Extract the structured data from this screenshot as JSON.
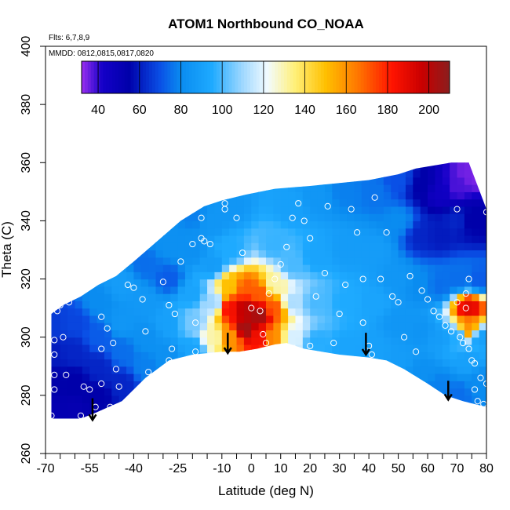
{
  "chart_data": {
    "type": "heatmap",
    "title": "ATOM1 Northbound CO_NOAA",
    "xlabel": "Latitude (deg N)",
    "ylabel": "Theta (C)",
    "xlim": [
      -70,
      80
    ],
    "ylim": [
      260,
      400
    ],
    "x_ticks": [
      -70,
      -55,
      -40,
      -25,
      -10,
      0,
      10,
      20,
      30,
      40,
      50,
      60,
      70,
      80
    ],
    "x_tick_labels": [
      "-70",
      "-55",
      "-40",
      "-25",
      "-10",
      "0",
      "10",
      "20",
      "30",
      "40",
      "50",
      "60",
      "70",
      "80"
    ],
    "x_minor_ticks": [
      -65,
      -60,
      -50,
      -45,
      -35,
      -30,
      -20,
      -15,
      -5,
      5,
      15,
      25,
      35,
      45,
      55,
      65,
      75
    ],
    "y_ticks": [
      260,
      280,
      300,
      320,
      340,
      360,
      380,
      400
    ],
    "y_tick_labels": [
      "260",
      "280",
      "300",
      "320",
      "340",
      "360",
      "380",
      "400"
    ],
    "notes": {
      "flights": "Flts: 6,7,8,9",
      "dates": "MMDD: 0812,0815,0817,0820"
    },
    "colorbar": {
      "range": [
        32,
        210
      ],
      "tick_values": [
        40,
        60,
        80,
        100,
        120,
        140,
        160,
        180,
        200
      ],
      "tick_labels": [
        "40",
        "60",
        "80",
        "100",
        "120",
        "140",
        "160",
        "180",
        "200"
      ],
      "stops": [
        {
          "value": 32,
          "color": "#9b2ff0"
        },
        {
          "value": 42,
          "color": "#1400c8"
        },
        {
          "value": 55,
          "color": "#0000aa"
        },
        {
          "value": 70,
          "color": "#0a50e6"
        },
        {
          "value": 80,
          "color": "#0a8cf0"
        },
        {
          "value": 95,
          "color": "#1eaaff"
        },
        {
          "value": 110,
          "color": "#a0d8ff"
        },
        {
          "value": 122,
          "color": "#f2fbff"
        },
        {
          "value": 135,
          "color": "#fff07a"
        },
        {
          "value": 150,
          "color": "#ffc000"
        },
        {
          "value": 165,
          "color": "#ff7a00"
        },
        {
          "value": 182,
          "color": "#ff1400"
        },
        {
          "value": 197,
          "color": "#c80000"
        },
        {
          "value": 210,
          "color": "#8b1e1e"
        }
      ]
    },
    "domain_bottom": [
      [
        -68,
        272
      ],
      [
        -58,
        272
      ],
      [
        -53,
        274
      ],
      [
        -44,
        278
      ],
      [
        -36,
        286
      ],
      [
        -28,
        292
      ],
      [
        -20,
        294
      ],
      [
        -10,
        295
      ],
      [
        -4,
        295
      ],
      [
        2,
        296
      ],
      [
        8,
        297.5
      ],
      [
        12,
        298
      ],
      [
        18,
        296
      ],
      [
        30,
        294
      ],
      [
        40,
        293
      ],
      [
        46,
        292
      ],
      [
        52,
        289
      ],
      [
        60,
        284
      ],
      [
        66,
        280
      ],
      [
        72,
        278
      ],
      [
        76,
        277
      ],
      [
        80,
        276
      ]
    ],
    "domain_top": [
      [
        -68,
        308
      ],
      [
        -64,
        311
      ],
      [
        -58,
        314
      ],
      [
        -52,
        318
      ],
      [
        -46,
        321
      ],
      [
        -40,
        326
      ],
      [
        -32,
        333
      ],
      [
        -24,
        340
      ],
      [
        -16,
        345
      ],
      [
        -10,
        347
      ],
      [
        -2,
        349
      ],
      [
        8,
        351
      ],
      [
        20,
        352
      ],
      [
        30,
        353
      ],
      [
        40,
        354
      ],
      [
        50,
        356
      ],
      [
        56,
        358
      ],
      [
        62,
        359
      ],
      [
        68,
        360
      ],
      [
        74,
        360
      ],
      [
        80,
        344
      ]
    ],
    "field_points": [
      {
        "x": -68,
        "y": 275,
        "v": 52
      },
      {
        "x": -68,
        "y": 285,
        "v": 55
      },
      {
        "x": -68,
        "y": 295,
        "v": 60
      },
      {
        "x": -68,
        "y": 305,
        "v": 66
      },
      {
        "x": -60,
        "y": 275,
        "v": 52
      },
      {
        "x": -60,
        "y": 285,
        "v": 55
      },
      {
        "x": -60,
        "y": 295,
        "v": 62
      },
      {
        "x": -60,
        "y": 305,
        "v": 68
      },
      {
        "x": -52,
        "y": 280,
        "v": 55
      },
      {
        "x": -52,
        "y": 290,
        "v": 62
      },
      {
        "x": -52,
        "y": 300,
        "v": 72
      },
      {
        "x": -52,
        "y": 312,
        "v": 80
      },
      {
        "x": -44,
        "y": 284,
        "v": 62
      },
      {
        "x": -44,
        "y": 295,
        "v": 75
      },
      {
        "x": -44,
        "y": 305,
        "v": 85
      },
      {
        "x": -44,
        "y": 318,
        "v": 88
      },
      {
        "x": -36,
        "y": 290,
        "v": 78
      },
      {
        "x": -36,
        "y": 300,
        "v": 82
      },
      {
        "x": -36,
        "y": 312,
        "v": 86
      },
      {
        "x": -36,
        "y": 325,
        "v": 75
      },
      {
        "x": -28,
        "y": 294,
        "v": 82
      },
      {
        "x": -28,
        "y": 305,
        "v": 90
      },
      {
        "x": -28,
        "y": 320,
        "v": 72
      },
      {
        "x": -28,
        "y": 333,
        "v": 82
      },
      {
        "x": -20,
        "y": 296,
        "v": 92
      },
      {
        "x": -20,
        "y": 305,
        "v": 105
      },
      {
        "x": -20,
        "y": 315,
        "v": 92
      },
      {
        "x": -20,
        "y": 330,
        "v": 82
      },
      {
        "x": -20,
        "y": 342,
        "v": 78
      },
      {
        "x": -13,
        "y": 300,
        "v": 130
      },
      {
        "x": -13,
        "y": 312,
        "v": 110
      },
      {
        "x": -13,
        "y": 325,
        "v": 88
      },
      {
        "x": -13,
        "y": 340,
        "v": 85
      },
      {
        "x": -7,
        "y": 300,
        "v": 160
      },
      {
        "x": -7,
        "y": 310,
        "v": 185
      },
      {
        "x": -7,
        "y": 318,
        "v": 150
      },
      {
        "x": -7,
        "y": 330,
        "v": 95
      },
      {
        "x": -7,
        "y": 345,
        "v": 85
      },
      {
        "x": -2,
        "y": 303,
        "v": 205
      },
      {
        "x": -2,
        "y": 310,
        "v": 200
      },
      {
        "x": -2,
        "y": 317,
        "v": 170
      },
      {
        "x": 3,
        "y": 300,
        "v": 185
      },
      {
        "x": 3,
        "y": 308,
        "v": 205
      },
      {
        "x": 3,
        "y": 315,
        "v": 170
      },
      {
        "x": 8,
        "y": 300,
        "v": 160
      },
      {
        "x": 8,
        "y": 310,
        "v": 170
      },
      {
        "x": 8,
        "y": 318,
        "v": 130
      },
      {
        "x": 8,
        "y": 332,
        "v": 98
      },
      {
        "x": 14,
        "y": 300,
        "v": 118
      },
      {
        "x": 14,
        "y": 312,
        "v": 112
      },
      {
        "x": 14,
        "y": 325,
        "v": 100
      },
      {
        "x": 14,
        "y": 345,
        "v": 90
      },
      {
        "x": 22,
        "y": 298,
        "v": 96
      },
      {
        "x": 22,
        "y": 312,
        "v": 100
      },
      {
        "x": 22,
        "y": 328,
        "v": 92
      },
      {
        "x": 22,
        "y": 348,
        "v": 85
      },
      {
        "x": 32,
        "y": 296,
        "v": 92
      },
      {
        "x": 32,
        "y": 312,
        "v": 95
      },
      {
        "x": 32,
        "y": 330,
        "v": 88
      },
      {
        "x": 32,
        "y": 350,
        "v": 78
      },
      {
        "x": 42,
        "y": 295,
        "v": 90
      },
      {
        "x": 42,
        "y": 312,
        "v": 92
      },
      {
        "x": 42,
        "y": 330,
        "v": 88
      },
      {
        "x": 42,
        "y": 350,
        "v": 76
      },
      {
        "x": 50,
        "y": 292,
        "v": 88
      },
      {
        "x": 50,
        "y": 305,
        "v": 85
      },
      {
        "x": 50,
        "y": 320,
        "v": 85
      },
      {
        "x": 50,
        "y": 340,
        "v": 80
      },
      {
        "x": 50,
        "y": 354,
        "v": 70
      },
      {
        "x": 58,
        "y": 288,
        "v": 82
      },
      {
        "x": 58,
        "y": 302,
        "v": 84
      },
      {
        "x": 58,
        "y": 318,
        "v": 80
      },
      {
        "x": 58,
        "y": 335,
        "v": 62
      },
      {
        "x": 58,
        "y": 352,
        "v": 55
      },
      {
        "x": 64,
        "y": 283,
        "v": 78
      },
      {
        "x": 64,
        "y": 300,
        "v": 88
      },
      {
        "x": 64,
        "y": 318,
        "v": 75
      },
      {
        "x": 64,
        "y": 335,
        "v": 60
      },
      {
        "x": 64,
        "y": 350,
        "v": 45
      },
      {
        "x": 70,
        "y": 280,
        "v": 75
      },
      {
        "x": 70,
        "y": 300,
        "v": 95
      },
      {
        "x": 70,
        "y": 320,
        "v": 75
      },
      {
        "x": 70,
        "y": 340,
        "v": 62
      },
      {
        "x": 70,
        "y": 352,
        "v": 38
      },
      {
        "x": 74,
        "y": 292,
        "v": 90
      },
      {
        "x": 74,
        "y": 303,
        "v": 160
      },
      {
        "x": 74,
        "y": 310,
        "v": 190
      },
      {
        "x": 74,
        "y": 340,
        "v": 55
      },
      {
        "x": 74,
        "y": 356,
        "v": 35
      },
      {
        "x": 78,
        "y": 285,
        "v": 80
      },
      {
        "x": 78,
        "y": 300,
        "v": 90
      },
      {
        "x": 78,
        "y": 320,
        "v": 72
      },
      {
        "x": 78,
        "y": 340,
        "v": 55
      },
      {
        "x": 78,
        "y": 356,
        "v": 34
      }
    ],
    "sample_points": [
      [
        -68,
        273
      ],
      [
        -67,
        282
      ],
      [
        -67,
        287
      ],
      [
        -67,
        294
      ],
      [
        -67,
        299
      ],
      [
        -66,
        309
      ],
      [
        -65,
        311
      ],
      [
        -62,
        312
      ],
      [
        -64,
        300
      ],
      [
        -63,
        287
      ],
      [
        -58,
        273
      ],
      [
        -57,
        283
      ],
      [
        -55,
        282
      ],
      [
        -53,
        276
      ],
      [
        -51,
        284
      ],
      [
        -51,
        296
      ],
      [
        -51,
        307
      ],
      [
        -49,
        303
      ],
      [
        -48,
        276
      ],
      [
        -47,
        298
      ],
      [
        -46,
        289
      ],
      [
        -45,
        283
      ],
      [
        -42,
        318
      ],
      [
        -40,
        317
      ],
      [
        -37,
        313
      ],
      [
        -36,
        302
      ],
      [
        -35,
        288
      ],
      [
        -30,
        319
      ],
      [
        -28,
        311
      ],
      [
        -28,
        292
      ],
      [
        -27,
        296
      ],
      [
        -26,
        308
      ],
      [
        -24,
        326
      ],
      [
        -20,
        332
      ],
      [
        -19,
        305
      ],
      [
        -19,
        295
      ],
      [
        -17,
        334
      ],
      [
        -17,
        341
      ],
      [
        -16,
        333
      ],
      [
        -14,
        332
      ],
      [
        -9,
        346
      ],
      [
        -9,
        344
      ],
      [
        -5,
        341
      ],
      [
        -3,
        329
      ],
      [
        0,
        310
      ],
      [
        3,
        309
      ],
      [
        4,
        301
      ],
      [
        5,
        298
      ],
      [
        6,
        315
      ],
      [
        8,
        320
      ],
      [
        10,
        325
      ],
      [
        12,
        331
      ],
      [
        14,
        341
      ],
      [
        16,
        346
      ],
      [
        18,
        340
      ],
      [
        20,
        334
      ],
      [
        20,
        297
      ],
      [
        22,
        314
      ],
      [
        25,
        322
      ],
      [
        26,
        345
      ],
      [
        28,
        298
      ],
      [
        30,
        308
      ],
      [
        32,
        318
      ],
      [
        34,
        344
      ],
      [
        36,
        336
      ],
      [
        38,
        320
      ],
      [
        38,
        305
      ],
      [
        40,
        297
      ],
      [
        41,
        294
      ],
      [
        42,
        348
      ],
      [
        44,
        320
      ],
      [
        46,
        336
      ],
      [
        48,
        314
      ],
      [
        50,
        312
      ],
      [
        52,
        300
      ],
      [
        54,
        321
      ],
      [
        56,
        295
      ],
      [
        58,
        316
      ],
      [
        60,
        313
      ],
      [
        62,
        309
      ],
      [
        64,
        307
      ],
      [
        66,
        304
      ],
      [
        68,
        302
      ],
      [
        70,
        344
      ],
      [
        70,
        312
      ],
      [
        71,
        300
      ],
      [
        72,
        298
      ],
      [
        73,
        310
      ],
      [
        73,
        315
      ],
      [
        74,
        320
      ],
      [
        74,
        296
      ],
      [
        75,
        292
      ],
      [
        76,
        291
      ],
      [
        76,
        282
      ],
      [
        77,
        278
      ],
      [
        78,
        286
      ],
      [
        79,
        277
      ],
      [
        80,
        284
      ],
      [
        80,
        343
      ]
    ],
    "arrows": [
      {
        "x": -54,
        "y_top": 279,
        "y_bottom": 271.5
      },
      {
        "x": -8,
        "y_top": 301.5,
        "y_bottom": 294.5
      },
      {
        "x": 39,
        "y_top": 301.5,
        "y_bottom": 294
      },
      {
        "x": 67,
        "y_top": 285,
        "y_bottom": 278.5
      }
    ]
  }
}
